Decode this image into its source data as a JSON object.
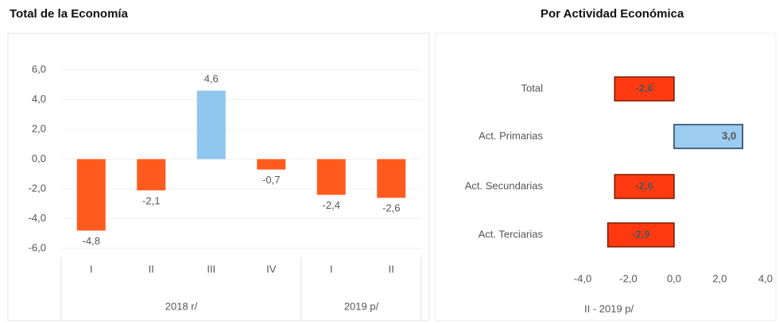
{
  "chart_data": [
    {
      "type": "bar",
      "title": "Total de la Economía",
      "groups": [
        {
          "label": "2018 r/",
          "categories": [
            "I",
            "II",
            "III",
            "IV"
          ]
        },
        {
          "label": "2019 p/",
          "categories": [
            "I",
            "II"
          ]
        }
      ],
      "values": [
        -4.8,
        -2.1,
        4.6,
        -0.7,
        -2.4,
        -2.6
      ],
      "value_labels": [
        "-4,8",
        "-2,1",
        "4,6",
        "-0,7",
        "-2,4",
        "-2,6"
      ],
      "colors": [
        "#ff5b1e",
        "#ff5b1e",
        "#8fc6ee",
        "#ff5b1e",
        "#ff5b1e",
        "#ff5b1e"
      ],
      "ylim": [
        -6,
        6
      ],
      "yticks": [
        {
          "value": 6,
          "label": "6,0"
        },
        {
          "value": 4,
          "label": "4,0"
        },
        {
          "value": 2,
          "label": "2,0"
        },
        {
          "value": 0,
          "label": "0,0"
        },
        {
          "value": -2,
          "label": "-2,0"
        },
        {
          "value": -4,
          "label": "-4,0"
        },
        {
          "value": -6,
          "label": "-6,0"
        }
      ]
    },
    {
      "type": "hbar",
      "title": "Por Actividad Económica",
      "categories": [
        "Total",
        "Act. Primarias",
        "Act. Secundarias",
        "Act. Terciarias"
      ],
      "values": [
        -2.6,
        3.0,
        -2.6,
        -2.9
      ],
      "value_labels": [
        "-2,6",
        "3,0",
        "-2,6",
        "-2,9"
      ],
      "colors": [
        "#ff3a10",
        "#9ccdf0",
        "#ff3a10",
        "#ff3a10"
      ],
      "xlim": [
        -4,
        4
      ],
      "xticks": [
        {
          "value": -4,
          "label": "-4,0"
        },
        {
          "value": -2,
          "label": "-2,0"
        },
        {
          "value": 0,
          "label": "0,0"
        },
        {
          "value": 2,
          "label": "2,0"
        },
        {
          "value": 4,
          "label": "4,0"
        }
      ],
      "xlabel": "II - 2019 p/"
    }
  ]
}
